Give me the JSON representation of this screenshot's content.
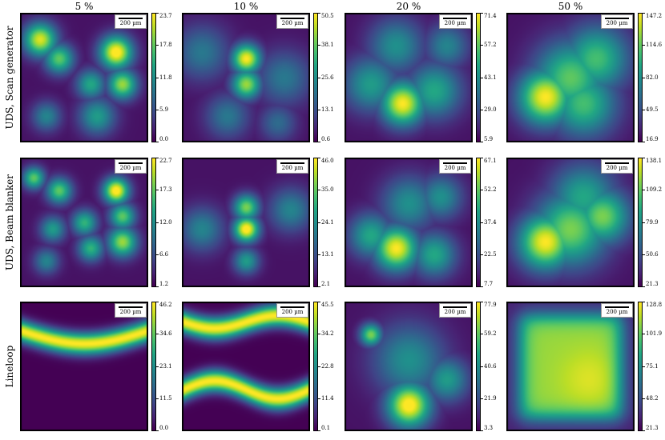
{
  "chart_data": {
    "type": "heatmap",
    "colormap": "viridis",
    "columns": [
      "5 %",
      "10 %",
      "20 %",
      "50 %"
    ],
    "rows": [
      "UDS, Scan generator",
      "UDS, Beam blanker",
      "Lineloop"
    ],
    "scalebar_label": "200 µm",
    "panels": [
      {
        "row": 0,
        "col": 0,
        "min": 0.0,
        "max": 23.7,
        "ticks": [
          "23.7",
          "17.8",
          "11.8",
          "5.9",
          "0.0"
        ],
        "blobs": [
          [
            0.15,
            0.2,
            0.09,
            0.9
          ],
          [
            0.3,
            0.35,
            0.08,
            0.7
          ],
          [
            0.75,
            0.3,
            0.09,
            1.0
          ],
          [
            0.8,
            0.55,
            0.08,
            0.8
          ],
          [
            0.55,
            0.55,
            0.08,
            0.55
          ],
          [
            0.2,
            0.8,
            0.08,
            0.4
          ],
          [
            0.6,
            0.8,
            0.1,
            0.5
          ]
        ]
      },
      {
        "row": 0,
        "col": 1,
        "min": 0.6,
        "max": 50.5,
        "ticks": [
          "50.5",
          "38.1",
          "25.6",
          "13.1",
          "0.6"
        ],
        "blobs": [
          [
            0.5,
            0.35,
            0.08,
            0.95
          ],
          [
            0.5,
            0.55,
            0.08,
            0.8
          ],
          [
            0.15,
            0.3,
            0.15,
            0.35
          ],
          [
            0.8,
            0.5,
            0.15,
            0.35
          ],
          [
            0.35,
            0.8,
            0.12,
            0.35
          ],
          [
            0.75,
            0.85,
            0.1,
            0.3
          ]
        ]
      },
      {
        "row": 0,
        "col": 2,
        "min": 5.9,
        "max": 71.4,
        "ticks": [
          "71.4",
          "57.2",
          "43.1",
          "29.0",
          "5.9"
        ],
        "blobs": [
          [
            0.45,
            0.7,
            0.12,
            0.95
          ],
          [
            0.2,
            0.55,
            0.15,
            0.5
          ],
          [
            0.7,
            0.6,
            0.15,
            0.55
          ],
          [
            0.4,
            0.25,
            0.15,
            0.45
          ],
          [
            0.8,
            0.25,
            0.12,
            0.4
          ]
        ]
      },
      {
        "row": 0,
        "col": 3,
        "min": 16.9,
        "max": 147.2,
        "ticks": [
          "147.2",
          "114.6",
          "82.0",
          "49.5",
          "16.9"
        ],
        "blobs": [
          [
            0.3,
            0.65,
            0.15,
            0.95
          ],
          [
            0.5,
            0.5,
            0.2,
            0.7
          ],
          [
            0.7,
            0.35,
            0.18,
            0.65
          ],
          [
            0.6,
            0.7,
            0.18,
            0.65
          ]
        ]
      },
      {
        "row": 1,
        "col": 0,
        "min": 1.2,
        "max": 22.7,
        "ticks": [
          "22.7",
          "17.3",
          "12.0",
          "6.6",
          "1.2"
        ],
        "blobs": [
          [
            0.75,
            0.25,
            0.07,
            1.0
          ],
          [
            0.3,
            0.25,
            0.07,
            0.7
          ],
          [
            0.1,
            0.15,
            0.06,
            0.7
          ],
          [
            0.5,
            0.5,
            0.07,
            0.6
          ],
          [
            0.8,
            0.45,
            0.07,
            0.7
          ],
          [
            0.8,
            0.65,
            0.08,
            0.8
          ],
          [
            0.25,
            0.55,
            0.07,
            0.5
          ],
          [
            0.55,
            0.7,
            0.07,
            0.6
          ],
          [
            0.2,
            0.8,
            0.07,
            0.4
          ]
        ]
      },
      {
        "row": 1,
        "col": 1,
        "min": 2.1,
        "max": 46.0,
        "ticks": [
          "46.0",
          "35.0",
          "24.1",
          "13.1",
          "2.1"
        ],
        "blobs": [
          [
            0.5,
            0.55,
            0.07,
            1.0
          ],
          [
            0.5,
            0.38,
            0.07,
            0.75
          ],
          [
            0.5,
            0.8,
            0.07,
            0.5
          ],
          [
            0.15,
            0.55,
            0.12,
            0.4
          ],
          [
            0.85,
            0.4,
            0.12,
            0.4
          ]
        ]
      },
      {
        "row": 1,
        "col": 2,
        "min": 7.7,
        "max": 67.1,
        "ticks": [
          "67.1",
          "52.2",
          "37.4",
          "22.5",
          "7.7"
        ],
        "blobs": [
          [
            0.4,
            0.7,
            0.12,
            0.95
          ],
          [
            0.2,
            0.6,
            0.12,
            0.55
          ],
          [
            0.7,
            0.75,
            0.12,
            0.55
          ],
          [
            0.5,
            0.35,
            0.15,
            0.45
          ],
          [
            0.75,
            0.3,
            0.12,
            0.45
          ]
        ]
      },
      {
        "row": 1,
        "col": 3,
        "min": 21.3,
        "max": 138.1,
        "ticks": [
          "138.1",
          "109.2",
          "79.9",
          "50.6",
          "21.3"
        ],
        "blobs": [
          [
            0.3,
            0.65,
            0.15,
            0.95
          ],
          [
            0.5,
            0.55,
            0.2,
            0.75
          ],
          [
            0.75,
            0.45,
            0.15,
            0.75
          ],
          [
            0.6,
            0.3,
            0.18,
            0.55
          ]
        ]
      },
      {
        "row": 2,
        "col": 0,
        "min": 0.0,
        "max": 46.2,
        "ticks": [
          "46.2",
          "34.6",
          "23.1",
          "11.5",
          "0.0"
        ],
        "bands": [
          {
            "y": 0.22,
            "amp": 0.1,
            "phase": 0.0,
            "width": 0.06,
            "wave": 0.5,
            "strength": 1.0
          }
        ]
      },
      {
        "row": 2,
        "col": 1,
        "min": 0.1,
        "max": 45.5,
        "ticks": [
          "45.5",
          "34.2",
          "22.8",
          "11.4",
          "0.1"
        ],
        "bands": [
          {
            "y": 0.15,
            "amp": 0.05,
            "phase": 0.0,
            "width": 0.06,
            "wave": 1.0,
            "strength": 1.0
          },
          {
            "y": 0.68,
            "amp": 0.07,
            "phase": 0.5,
            "width": 0.06,
            "wave": 1.0,
            "strength": 1.0
          }
        ]
      },
      {
        "row": 2,
        "col": 2,
        "min": 3.3,
        "max": 77.9,
        "ticks": [
          "77.9",
          "59.2",
          "40.6",
          "21.9",
          "3.3"
        ],
        "blobs": [
          [
            0.5,
            0.8,
            0.12,
            1.0
          ],
          [
            0.2,
            0.25,
            0.06,
            0.75
          ],
          [
            0.5,
            0.45,
            0.2,
            0.45
          ],
          [
            0.8,
            0.6,
            0.12,
            0.5
          ]
        ]
      },
      {
        "row": 2,
        "col": 3,
        "min": 21.3,
        "max": 128.8,
        "ticks": [
          "128.8",
          "101.9",
          "75.1",
          "48.2",
          "21.3"
        ],
        "square": true
      }
    ]
  }
}
